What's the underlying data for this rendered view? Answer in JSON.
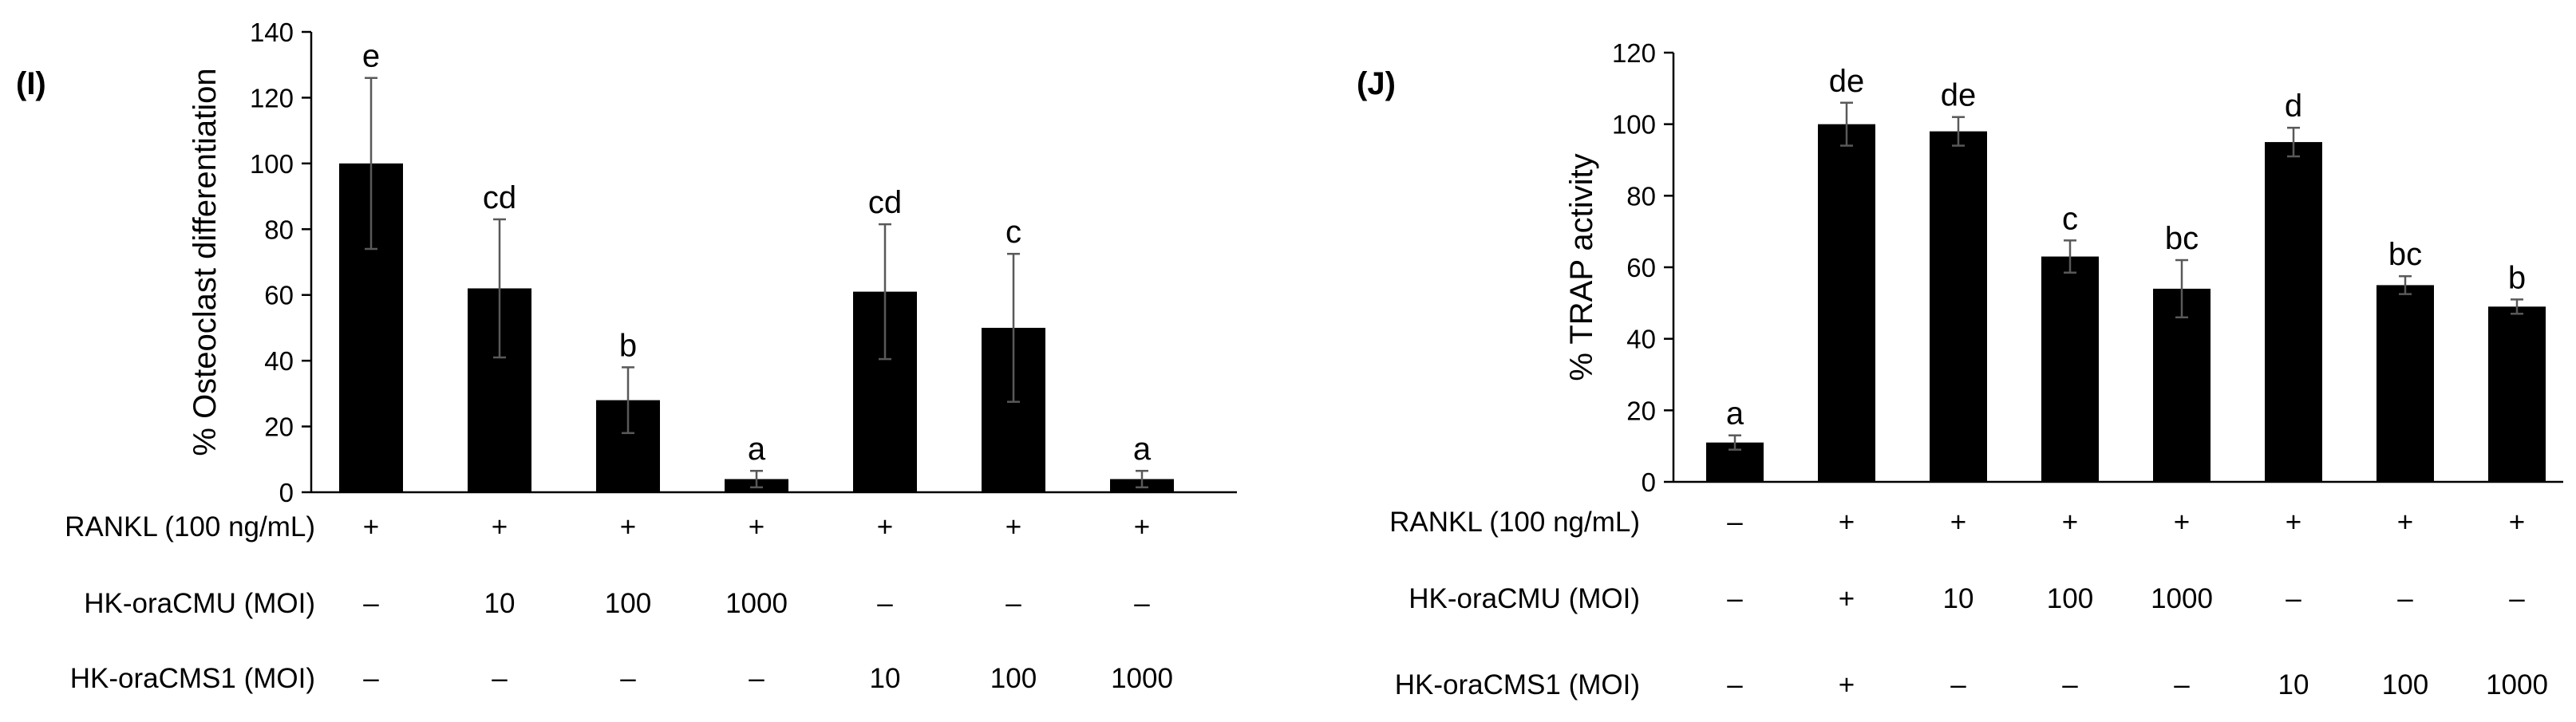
{
  "chart_data": [
    {
      "type": "bar",
      "panel_label": "(I)",
      "ylabel": "% Osteoclast differentiation",
      "ylim": [
        0,
        140
      ],
      "yticks": [
        0,
        20,
        40,
        60,
        80,
        100,
        120,
        140
      ],
      "values": [
        100,
        62,
        28,
        4,
        61,
        50,
        4
      ],
      "errors": [
        26,
        21,
        10,
        2.5,
        20.5,
        22.5,
        2.5
      ],
      "significance": [
        "e",
        "cd",
        "b",
        "a",
        "cd",
        "c",
        "a"
      ],
      "conditions": [
        {
          "label": "RANKL (100 ng/mL)",
          "values": [
            "+",
            "+",
            "+",
            "+",
            "+",
            "+",
            "+"
          ]
        },
        {
          "label": "HK-oraCMU (MOI)",
          "values": [
            "–",
            "10",
            "100",
            "1000",
            "–",
            "–",
            "–"
          ]
        },
        {
          "label": "HK-oraCMS1 (MOI)",
          "values": [
            "–",
            "–",
            "–",
            "–",
            "10",
            "100",
            "1000"
          ]
        }
      ]
    },
    {
      "type": "bar",
      "panel_label": "(J)",
      "ylabel": "% TRAP activity",
      "ylim": [
        0,
        120
      ],
      "yticks": [
        0,
        20,
        40,
        60,
        80,
        100,
        120
      ],
      "values": [
        11,
        100,
        98,
        63,
        54,
        95,
        55,
        49
      ],
      "errors": [
        2,
        6,
        4,
        4.5,
        8,
        4,
        2.5,
        2
      ],
      "significance": [
        "a",
        "de",
        "de",
        "c",
        "bc",
        "d",
        "bc",
        "b"
      ],
      "conditions": [
        {
          "label": "RANKL (100 ng/mL)",
          "values": [
            "–",
            "+",
            "+",
            "+",
            "+",
            "+",
            "+",
            "+"
          ]
        },
        {
          "label": "HK-oraCMU (MOI)",
          "values": [
            "–",
            "+",
            "10",
            "100",
            "1000",
            "–",
            "–",
            "–"
          ]
        },
        {
          "label": "HK-oraCMS1 (MOI)",
          "values": [
            "–",
            "+",
            "–",
            "–",
            "–",
            "10",
            "100",
            "1000"
          ]
        }
      ]
    }
  ]
}
